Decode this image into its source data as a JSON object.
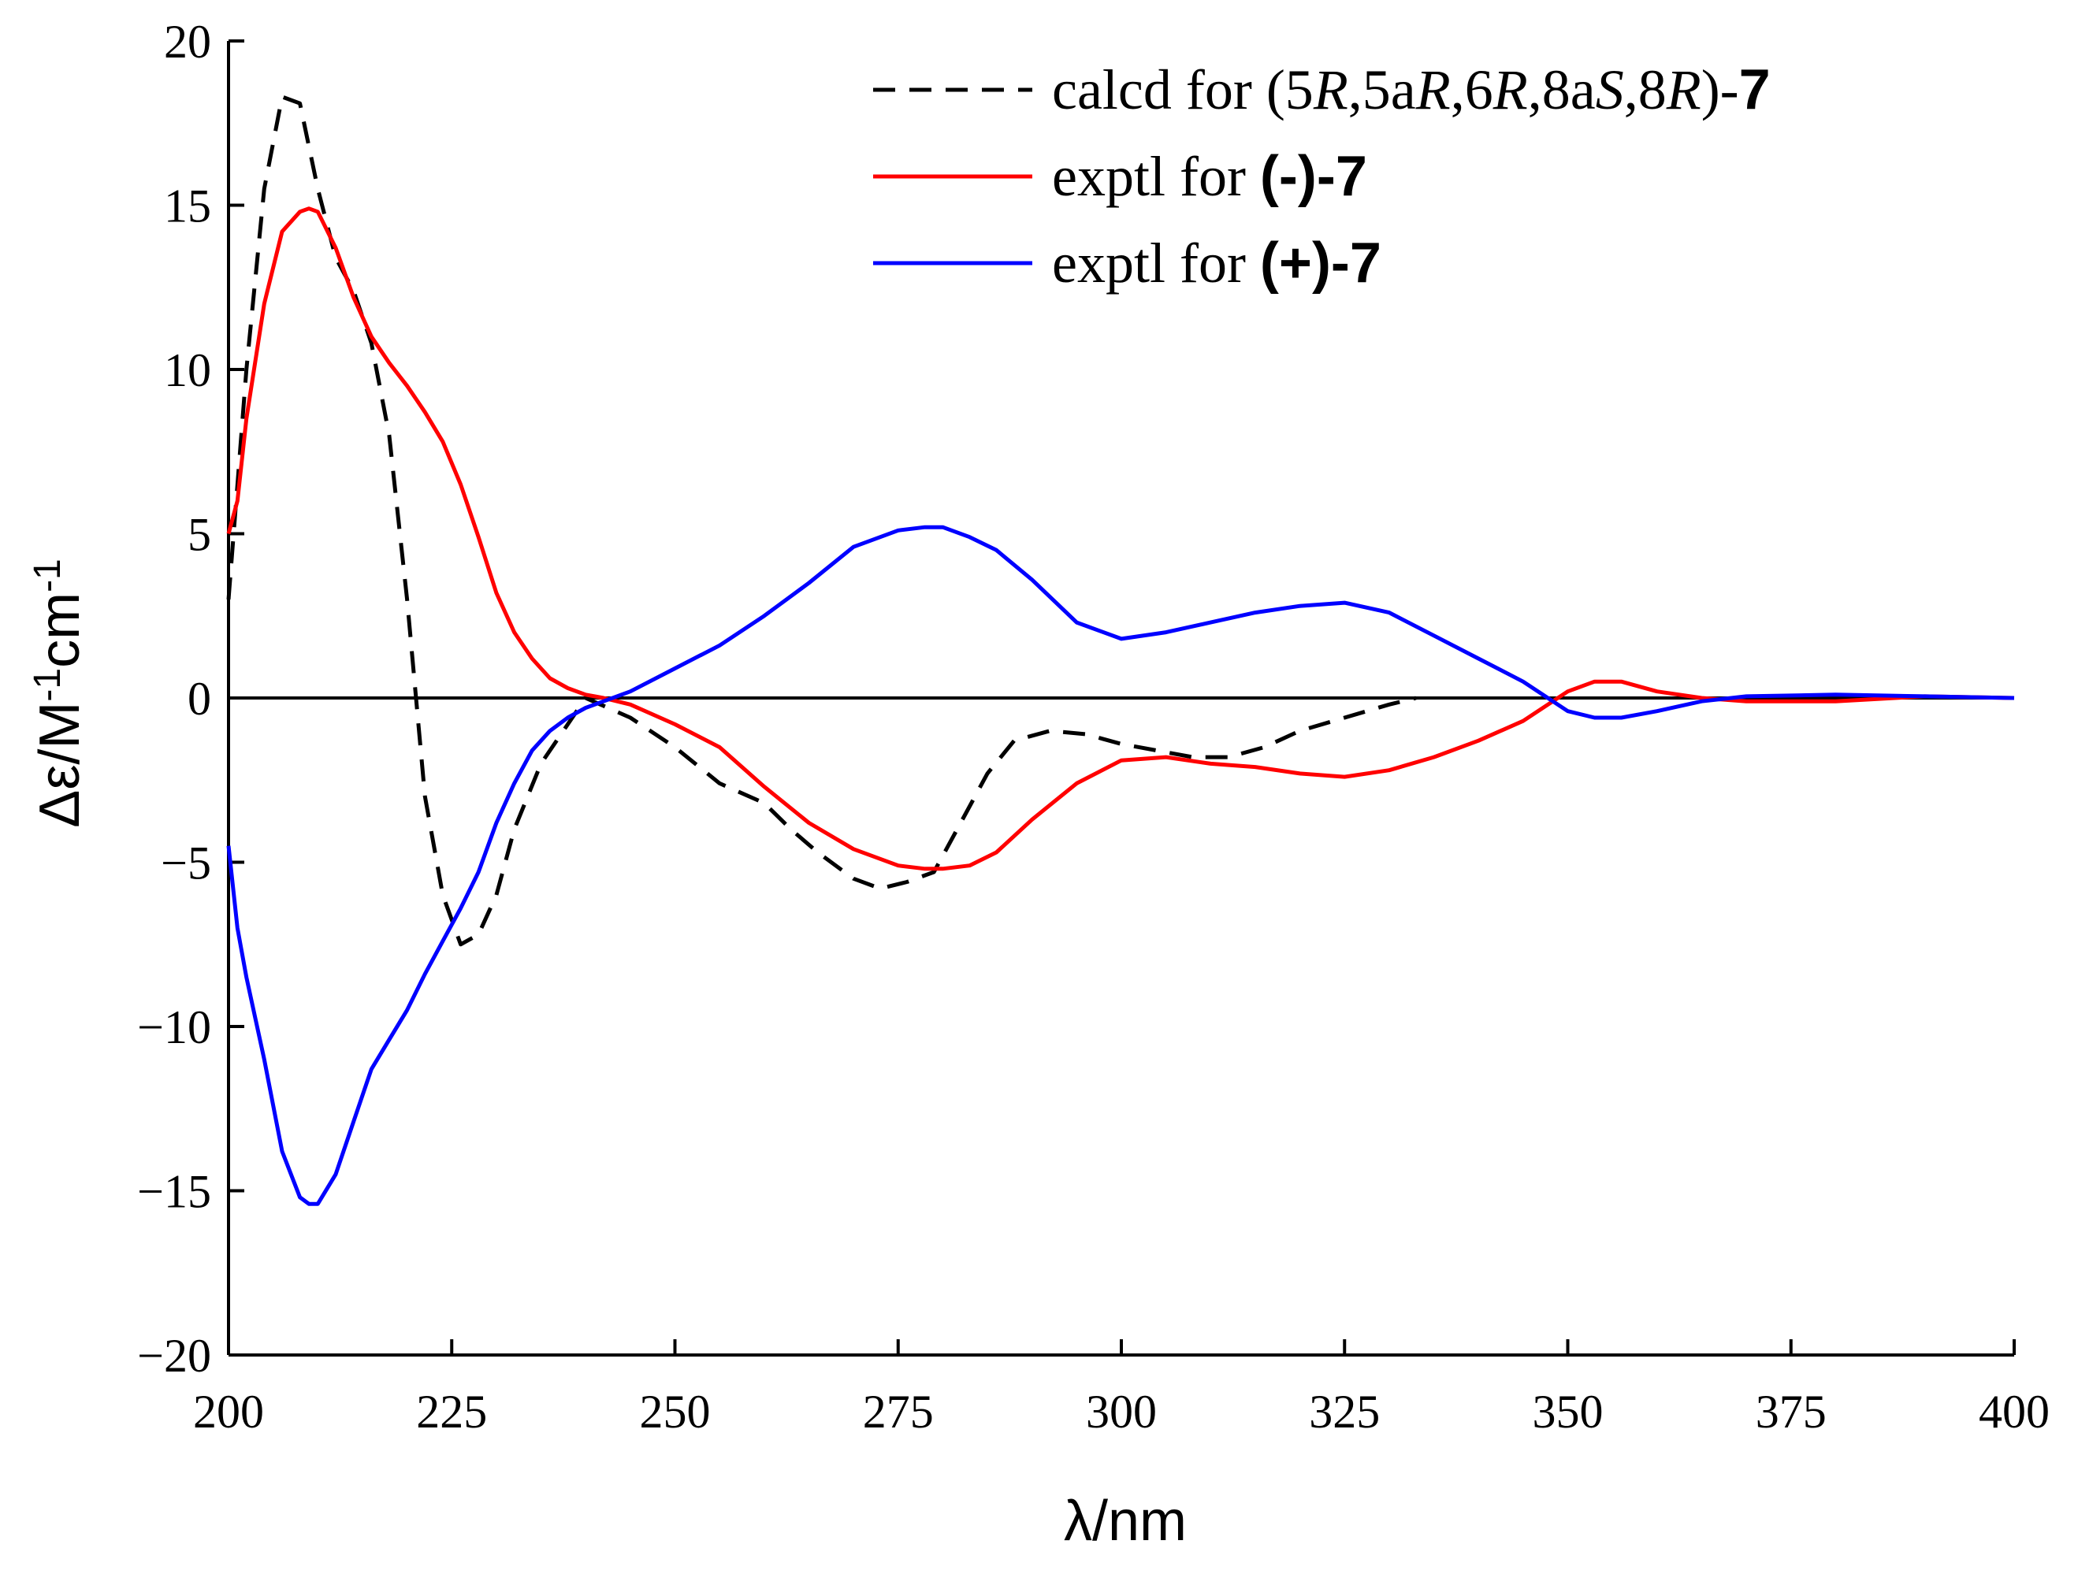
{
  "chart_data": {
    "type": "line",
    "title": "",
    "xlabel": "λ/nm",
    "ylabel": {
      "main": "Δε/M",
      "sup1": "-1",
      "mid": "cm",
      "sup2": "-1"
    },
    "xlim": [
      200,
      400
    ],
    "ylim": [
      -20,
      20
    ],
    "xticks": [
      200,
      225,
      250,
      275,
      300,
      325,
      350,
      375,
      400
    ],
    "yticks": [
      -20,
      -15,
      -10,
      -5,
      0,
      5,
      10,
      15,
      20
    ],
    "ytick_labels": [
      "−20",
      "−15",
      "−10",
      "−5",
      "0",
      "5",
      "10",
      "15",
      "20"
    ],
    "xtick_labels": [
      "200",
      "225",
      "250",
      "275",
      "300",
      "325",
      "350",
      "375",
      "400"
    ],
    "zero_line": true,
    "legend_position": "top-right",
    "series": [
      {
        "name": "calcd for (5R,5aR,6R,8aS,8R)-7",
        "legend_runs": [
          {
            "text": "calcd for (5",
            "style": "normal"
          },
          {
            "text": "R",
            "style": "italic"
          },
          {
            "text": ",5a",
            "style": "normal"
          },
          {
            "text": "R",
            "style": "italic"
          },
          {
            "text": ",6",
            "style": "normal"
          },
          {
            "text": "R",
            "style": "italic"
          },
          {
            "text": ",8a",
            "style": "normal"
          },
          {
            "text": "S",
            "style": "italic"
          },
          {
            "text": ",8",
            "style": "normal"
          },
          {
            "text": "R",
            "style": "italic"
          },
          {
            "text": ")-",
            "style": "normal"
          },
          {
            "text": "7",
            "style": "bold"
          }
        ],
        "color": "#000000",
        "dash": "dashed",
        "x": [
          200,
          202,
          204,
          206,
          208,
          210,
          212,
          214,
          216,
          218,
          220,
          222,
          224,
          226,
          228,
          230,
          232,
          235,
          240,
          245,
          250,
          255,
          260,
          263,
          266,
          270,
          273,
          276,
          279,
          282,
          285,
          288,
          292,
          296,
          300,
          304,
          308,
          312,
          316,
          320,
          325,
          330,
          333
        ],
        "y": [
          3.0,
          10.0,
          15.5,
          18.3,
          18.1,
          15.5,
          13.4,
          12.4,
          10.8,
          8.0,
          3.0,
          -3.0,
          -6.0,
          -7.5,
          -7.2,
          -6.0,
          -4.0,
          -2.0,
          0.0,
          -0.6,
          -1.5,
          -2.6,
          -3.2,
          -4.0,
          -4.7,
          -5.5,
          -5.8,
          -5.6,
          -5.3,
          -3.8,
          -2.3,
          -1.3,
          -1.0,
          -1.1,
          -1.4,
          -1.6,
          -1.8,
          -1.8,
          -1.5,
          -1.0,
          -0.6,
          -0.2,
          0.0
        ]
      },
      {
        "name": "exptl for (-)-7",
        "legend_runs": [
          {
            "text": "exptl for ",
            "style": "normal"
          },
          {
            "text": "(-)-7",
            "style": "bold"
          }
        ],
        "color": "#ff0000",
        "dash": "solid",
        "x": [
          200,
          201,
          202,
          204,
          206,
          208,
          209,
          210,
          212,
          214,
          216,
          218,
          220,
          222,
          224,
          226,
          228,
          230,
          232,
          234,
          236,
          238,
          240,
          242,
          245,
          250,
          255,
          260,
          265,
          270,
          275,
          278,
          280,
          283,
          286,
          290,
          295,
          300,
          305,
          310,
          315,
          320,
          325,
          330,
          335,
          340,
          345,
          350,
          353,
          356,
          360,
          365,
          370,
          380,
          390,
          400
        ],
        "y": [
          5.0,
          6.0,
          8.5,
          12.0,
          14.2,
          14.8,
          14.9,
          14.8,
          13.7,
          12.2,
          11.0,
          10.2,
          9.5,
          8.7,
          7.8,
          6.5,
          4.9,
          3.2,
          2.0,
          1.2,
          0.6,
          0.3,
          0.1,
          0.0,
          -0.2,
          -0.8,
          -1.5,
          -2.7,
          -3.8,
          -4.6,
          -5.1,
          -5.2,
          -5.2,
          -5.1,
          -4.7,
          -3.7,
          -2.6,
          -1.9,
          -1.8,
          -2.0,
          -2.1,
          -2.3,
          -2.4,
          -2.2,
          -1.8,
          -1.3,
          -0.7,
          0.2,
          0.5,
          0.5,
          0.2,
          0.0,
          -0.1,
          -0.1,
          0.05,
          0.0
        ]
      },
      {
        "name": "exptl for (+)-7",
        "legend_runs": [
          {
            "text": "exptl for ",
            "style": "normal"
          },
          {
            "text": "(+)-7",
            "style": "bold"
          }
        ],
        "color": "#0000ff",
        "dash": "solid",
        "x": [
          200,
          201,
          202,
          204,
          206,
          208,
          209,
          210,
          212,
          214,
          216,
          218,
          220,
          222,
          224,
          226,
          228,
          230,
          232,
          234,
          236,
          238,
          240,
          242,
          245,
          250,
          255,
          260,
          265,
          270,
          275,
          278,
          280,
          283,
          286,
          290,
          295,
          300,
          305,
          310,
          315,
          320,
          325,
          330,
          335,
          340,
          345,
          350,
          353,
          356,
          360,
          365,
          370,
          380,
          390,
          400
        ],
        "y": [
          -4.5,
          -7.0,
          -8.5,
          -11.0,
          -13.8,
          -15.2,
          -15.4,
          -15.4,
          -14.5,
          -12.9,
          -11.3,
          -10.4,
          -9.5,
          -8.4,
          -7.4,
          -6.4,
          -5.3,
          -3.8,
          -2.6,
          -1.6,
          -1.0,
          -0.6,
          -0.3,
          -0.1,
          0.2,
          0.9,
          1.6,
          2.5,
          3.5,
          4.6,
          5.1,
          5.2,
          5.2,
          4.9,
          4.5,
          3.6,
          2.3,
          1.8,
          2.0,
          2.3,
          2.6,
          2.8,
          2.9,
          2.6,
          1.9,
          1.2,
          0.5,
          -0.4,
          -0.6,
          -0.6,
          -0.4,
          -0.1,
          0.05,
          0.1,
          0.05,
          0.0
        ]
      }
    ]
  }
}
